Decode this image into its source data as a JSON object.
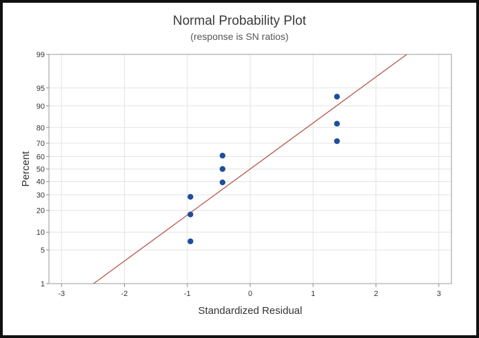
{
  "chart_data": {
    "type": "scatter",
    "title": "Normal Probability Plot",
    "subtitle": "(response is SN ratios)",
    "xlabel": "Standardized Residual",
    "ylabel": "Percent",
    "xlim": [
      -3.2,
      3.2
    ],
    "ylim": [
      1,
      99
    ],
    "y_scale": "normal-probability",
    "grid": true,
    "x_ticks": [
      -3,
      -2,
      -1,
      0,
      1,
      2,
      3
    ],
    "y_ticks": [
      1,
      5,
      10,
      20,
      30,
      40,
      50,
      60,
      70,
      80,
      90,
      95,
      99
    ],
    "points": [
      {
        "x": -0.95,
        "y": 7.1
      },
      {
        "x": -0.95,
        "y": 17.8
      },
      {
        "x": -0.95,
        "y": 28.6
      },
      {
        "x": -0.44,
        "y": 39.3
      },
      {
        "x": -0.44,
        "y": 50.0
      },
      {
        "x": -0.44,
        "y": 60.7
      },
      {
        "x": 1.38,
        "y": 71.4
      },
      {
        "x": 1.38,
        "y": 82.1
      },
      {
        "x": 1.38,
        "y": 92.9
      }
    ],
    "fit_line": {
      "x_start": -2.49,
      "x_end": 2.49,
      "color": "#b5544a"
    },
    "point_color": "#1f4e9c"
  }
}
